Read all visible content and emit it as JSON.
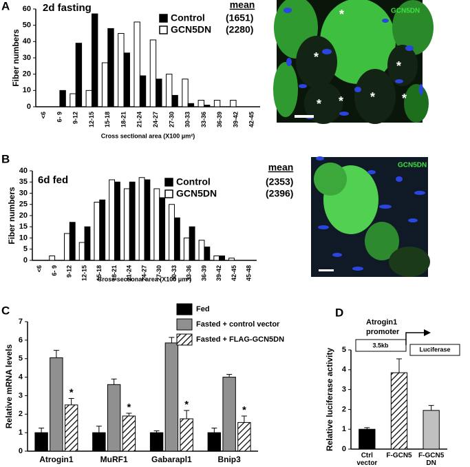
{
  "panels": [
    "A",
    "B",
    "C",
    "D"
  ],
  "images": [
    {
      "label": "GCN5DN",
      "marker": "*"
    },
    {
      "label": "GCN5DN"
    }
  ],
  "diagram": {
    "title_line1": "Atrogin1",
    "title_line2": "promoter",
    "box1": "3.5kb",
    "box2": "Luciferase"
  },
  "chart_data": [
    {
      "type": "bar",
      "title": "2d fasting",
      "ylabel": "Fiber numbers",
      "xlabel": "Cross sectional area (X100 μm²)",
      "legend_title": "mean",
      "xtick_rotation": 90,
      "categories": [
        "<6",
        "6- 9",
        "9-12",
        "12-15",
        "15-18",
        "18-21",
        "21-24",
        "24-27",
        "27-30",
        "30-33",
        "33-36",
        "36-39",
        "39-42",
        "42-45"
      ],
      "series": [
        {
          "name": "Control",
          "mean": "(1651)",
          "color": "#000000",
          "values": [
            0,
            10,
            39,
            57,
            48,
            33,
            19,
            17,
            7,
            2,
            1,
            0,
            0,
            0
          ]
        },
        {
          "name": "GCN5DN",
          "mean": "(2280)",
          "color": "#ffffff",
          "values": [
            0,
            0,
            8,
            10,
            27,
            45,
            52,
            41,
            20,
            17,
            4,
            4,
            4,
            0
          ]
        }
      ],
      "ylim": [
        0,
        60
      ],
      "yticks": [
        0,
        10,
        20,
        30,
        40,
        50,
        60
      ]
    },
    {
      "type": "bar",
      "title": "6d fed",
      "ylabel": "Fiber numbers",
      "xlabel": "Cross sectional area (X100 μm²)",
      "legend_title": "mean",
      "xtick_rotation": 90,
      "categories": [
        "<6",
        "6- 9",
        "9-12",
        "12-15",
        "15-18",
        "18-21",
        "21-24",
        "24-27",
        "27-30",
        "30-33",
        "33-36",
        "36-39",
        "39-42",
        "42-45",
        "45-48"
      ],
      "series": [
        {
          "name": "Control",
          "mean": "(2353)",
          "color": "#000000",
          "values": [
            0,
            0,
            17,
            15,
            27,
            35,
            35,
            36,
            28,
            19,
            15,
            6,
            2,
            0,
            0
          ]
        },
        {
          "name": "GCN5DN",
          "mean": "(2396)",
          "color": "#ffffff",
          "values": [
            0,
            2,
            12,
            8,
            26,
            36,
            32,
            37,
            32,
            25,
            10,
            9,
            2,
            1,
            0
          ]
        }
      ],
      "ylim": [
        0,
        40
      ],
      "yticks": [
        0,
        5,
        10,
        15,
        20,
        25,
        30,
        35,
        40
      ]
    },
    {
      "type": "bar",
      "ylabel": "Relative mRNA levels",
      "categories": [
        "Atrogin1",
        "MuRF1",
        "Gabarapl1",
        "Bnip3"
      ],
      "significance": [
        "*",
        "*",
        "*",
        "*"
      ],
      "series": [
        {
          "name": "Fed",
          "color": "#000000",
          "pattern": "none",
          "values": [
            1,
            1,
            1,
            1
          ],
          "errors": [
            0.25,
            0.35,
            0.1,
            0.25
          ]
        },
        {
          "name": "Fasted + control vector",
          "color": "#909090",
          "pattern": "none",
          "values": [
            5.05,
            3.6,
            5.85,
            4.0
          ],
          "errors": [
            0.4,
            0.3,
            0.3,
            0.15
          ]
        },
        {
          "name": "Fasted + FLAG-GCN5DN",
          "color": "#ffffff",
          "pattern": "diagonal-hatch",
          "values": [
            2.5,
            1.9,
            1.75,
            1.55
          ],
          "errors": [
            0.35,
            0.15,
            0.45,
            0.35
          ]
        }
      ],
      "ylim": [
        0,
        7
      ],
      "yticks": [
        0,
        1,
        2,
        3,
        4,
        5,
        6,
        7
      ]
    },
    {
      "type": "bar",
      "ylabel": "Relative luciferase activity",
      "categories": [
        "Ctrl vector",
        "F-GCN5",
        "F-GCN5 DN"
      ],
      "values": [
        1.0,
        3.85,
        1.95
      ],
      "errors": [
        0.08,
        0.7,
        0.25
      ],
      "colors": [
        "#000000",
        "#ffffff",
        "#c0c0c0"
      ],
      "patterns": [
        "none",
        "diagonal-hatch",
        "none"
      ],
      "ylim": [
        0,
        5
      ],
      "yticks": [
        0,
        1,
        2,
        3,
        4,
        5
      ]
    }
  ]
}
